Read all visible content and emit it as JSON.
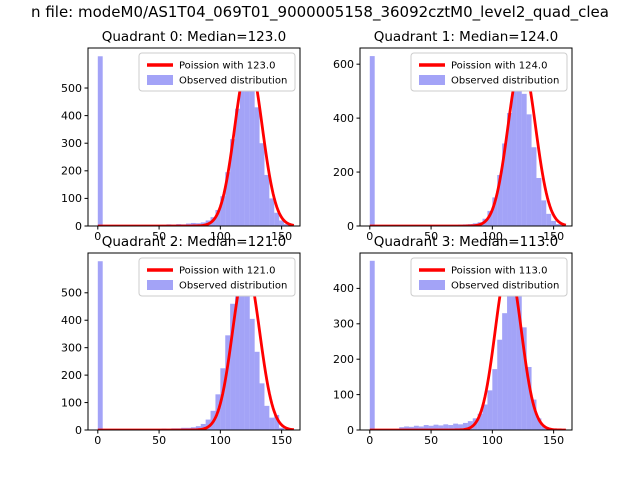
{
  "figure": {
    "title": "n file: modeM0/AS1T04_069T01_9000005158_36092cztM0_level2_quad_clea",
    "background": "#ffffff"
  },
  "colors": {
    "fit_line": "#ff0000",
    "hist_fill": "rgba(88,88,240,0.55)",
    "legend_border": "#cccccc",
    "axes_edge": "#000000"
  },
  "chart_data": [
    {
      "type": "bar",
      "title": "Quadrant 0: Median=123.0",
      "legend": [
        "Poission with 123.0",
        "Observed distribution"
      ],
      "bin_start": 0,
      "bin_width": 4,
      "counts": [
        615,
        0,
        0,
        0,
        0,
        0,
        0,
        0,
        0,
        0,
        0,
        2,
        3,
        4,
        6,
        5,
        7,
        6,
        9,
        11,
        10,
        13,
        20,
        32,
        58,
        108,
        195,
        315,
        425,
        530,
        555,
        505,
        430,
        300,
        185,
        100,
        48,
        20,
        7,
        2
      ],
      "fit": {
        "lambda": 123.0,
        "peak": 600
      },
      "x_ticks": [
        0,
        50,
        100,
        150
      ],
      "y_ticks": [
        0,
        100,
        200,
        300,
        400,
        500
      ],
      "xlim": [
        -8,
        165
      ],
      "ylim": [
        0,
        645
      ]
    },
    {
      "type": "bar",
      "title": "Quadrant 1: Median=124.0",
      "legend": [
        "Poission with 124.0",
        "Observed distribution"
      ],
      "bin_start": 0,
      "bin_width": 4,
      "counts": [
        630,
        0,
        0,
        0,
        0,
        0,
        0,
        0,
        0,
        0,
        0,
        1,
        2,
        2,
        3,
        3,
        4,
        4,
        5,
        6,
        7,
        10,
        14,
        27,
        56,
        106,
        189,
        306,
        419,
        513,
        545,
        490,
        414,
        292,
        178,
        95,
        45,
        19,
        7,
        3
      ],
      "fit": {
        "lambda": 124.0,
        "peak": 615
      },
      "x_ticks": [
        0,
        50,
        100,
        150
      ],
      "y_ticks": [
        0,
        200,
        400,
        600
      ],
      "xlim": [
        -8,
        165
      ],
      "ylim": [
        0,
        660
      ]
    },
    {
      "type": "bar",
      "title": "Quadrant 2: Median=121.0",
      "legend": [
        "Poission with 121.0",
        "Observed distribution"
      ],
      "bin_start": 0,
      "bin_width": 4,
      "counts": [
        615,
        0,
        0,
        0,
        0,
        0,
        0,
        0,
        0,
        0,
        0,
        2,
        3,
        5,
        4,
        6,
        6,
        8,
        8,
        10,
        14,
        22,
        38,
        70,
        130,
        225,
        345,
        460,
        535,
        550,
        500,
        405,
        285,
        170,
        88,
        45,
        55,
        8,
        2,
        1
      ],
      "fit": {
        "lambda": 121.0,
        "peak": 595
      },
      "x_ticks": [
        0,
        50,
        100,
        150
      ],
      "y_ticks": [
        0,
        100,
        200,
        300,
        400,
        500
      ],
      "xlim": [
        -8,
        165
      ],
      "ylim": [
        0,
        645
      ]
    },
    {
      "type": "bar",
      "title": "Quadrant 3: Median=113.0",
      "legend": [
        "Poission with 113.0",
        "Observed distribution"
      ],
      "bin_start": 0,
      "bin_width": 4,
      "counts": [
        478,
        0,
        0,
        0,
        0,
        0,
        8,
        10,
        9,
        12,
        10,
        14,
        12,
        15,
        13,
        16,
        14,
        18,
        16,
        20,
        25,
        33,
        46,
        72,
        112,
        172,
        255,
        330,
        415,
        430,
        380,
        290,
        178,
        86,
        33,
        11,
        4,
        1,
        0,
        0
      ],
      "fit": {
        "lambda": 113.0,
        "peak": 465
      },
      "x_ticks": [
        0,
        50,
        100,
        150
      ],
      "y_ticks": [
        0,
        100,
        200,
        300,
        400
      ],
      "xlim": [
        -8,
        165
      ],
      "ylim": [
        0,
        500
      ]
    }
  ]
}
